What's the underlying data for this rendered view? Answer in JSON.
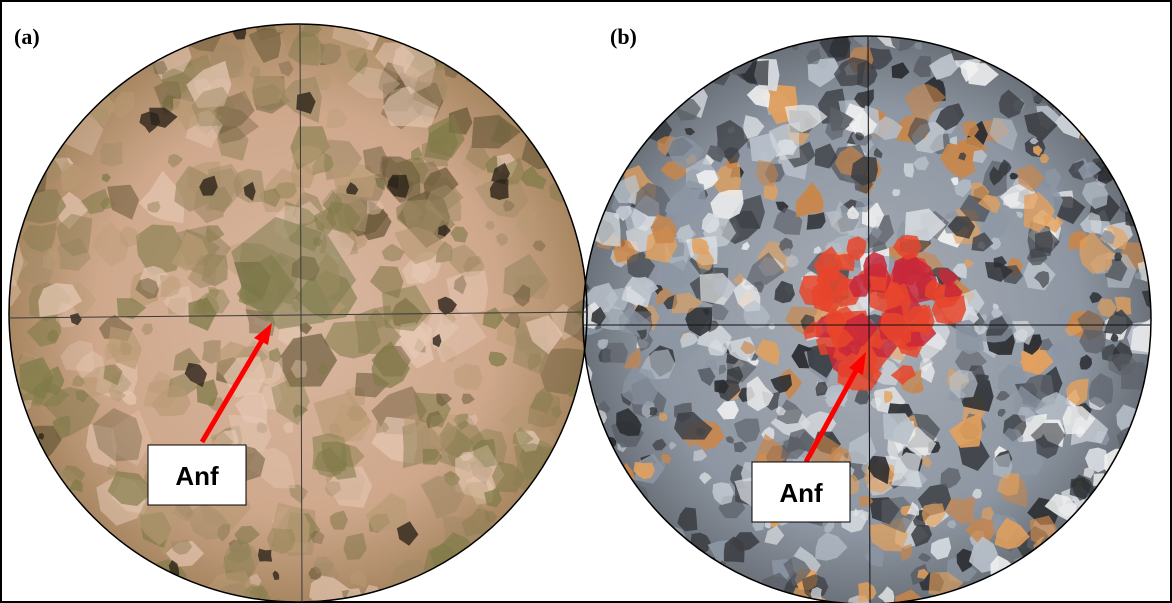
{
  "panels": [
    {
      "label": "(a)",
      "annotation": "Anf"
    },
    {
      "label": "(b)",
      "annotation": "Anf"
    }
  ]
}
